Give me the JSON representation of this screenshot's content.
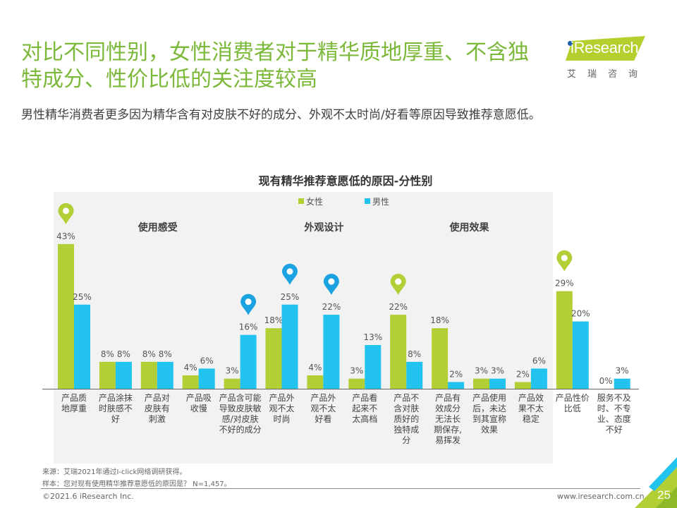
{
  "page": {
    "title": "对比不同性别，女性消费者对于精华质地厚重、不含独特成分、性价比低的关注度较高",
    "subtitle": "男性精华消费者更多因为精华含有对皮肤不好的成分、外观不太时尚/好看等原因导致推荐意愿低。",
    "logo": {
      "brand": "iResearch",
      "cn": "艾瑞咨询"
    },
    "source_note": "来源：艾瑞2021年通过I-click网络调研获得。",
    "sample_note": "样本：您对现有使用精华推荐意愿低的原因是？ N=1,457。",
    "copyright": "©2021.6 iResearch Inc.",
    "website": "www.iresearch.com.cn",
    "page_number": "25",
    "colors": {
      "female": "#b2cf35",
      "male": "#22c3ee",
      "title_green": "#7cb83a",
      "pin_blue": "#1aa3e0",
      "panel_bg": "#f2f2f2"
    }
  },
  "chart_data": {
    "type": "bar",
    "title": "现有精华推荐意愿低的原因-分性别",
    "xlabel": "",
    "ylabel": "",
    "ylim": [
      0,
      45
    ],
    "grid": false,
    "legend_position": "top-center",
    "unit": "%",
    "categories": [
      "产品质地厚重",
      "产品涂抹时肤感不好",
      "产品对皮肤有刺激",
      "产品吸收慢",
      "产品含可能导致皮肤敏感/对皮肤不好的成分",
      "产品外观不太时尚",
      "产品外观不太好看",
      "产品看起来不太高档",
      "产品不含对肤质好的独特成分",
      "产品有效成分无法长期保存，易挥发",
      "产品使用后，未达到其宣称效果",
      "产品效果不太稳定",
      "产品性价比低",
      "服务不及时、不专业、态度不好"
    ],
    "category_lines": [
      [
        "产品质",
        "地厚重"
      ],
      [
        "产品涂抹",
        "时肤感不",
        "好"
      ],
      [
        "产品对",
        "皮肤有",
        "刺激"
      ],
      [
        "产品吸",
        "收慢"
      ],
      [
        "产品含可能",
        "导致皮肤敏",
        "感/对皮肤",
        "不好的成分"
      ],
      [
        "产品外",
        "观不太",
        "时尚"
      ],
      [
        "产品外",
        "观不太",
        "好看"
      ],
      [
        "产品看",
        "起来不",
        "太高档"
      ],
      [
        "产品不",
        "含对肤",
        "质好的",
        "独特成",
        "分"
      ],
      [
        "产品有",
        "效成分",
        "无法长",
        "期保存,",
        "易挥发"
      ],
      [
        "产品使用",
        "后，未达",
        "到其宣称",
        "效果"
      ],
      [
        "产品效",
        "果不太",
        "稳定"
      ],
      [
        "产品性价",
        "比低"
      ],
      [
        "服务不及",
        "时、不专",
        "业、态度",
        "不好"
      ]
    ],
    "series": [
      {
        "name": "女性",
        "values": [
          43,
          8,
          8,
          4,
          3,
          18,
          4,
          3,
          22,
          18,
          3,
          2,
          29,
          0
        ]
      },
      {
        "name": "男性",
        "values": [
          25,
          8,
          8,
          6,
          16,
          25,
          22,
          13,
          8,
          2,
          3,
          6,
          20,
          3
        ]
      }
    ],
    "groups": [
      {
        "label": "使用感受",
        "from": 0,
        "to": 4
      },
      {
        "label": "外观设计",
        "from": 5,
        "to": 7
      },
      {
        "label": "使用效果",
        "from": 8,
        "to": 11
      }
    ],
    "highlights": [
      {
        "category_index": 0,
        "series": "女性"
      },
      {
        "category_index": 4,
        "series": "男性"
      },
      {
        "category_index": 5,
        "series": "男性"
      },
      {
        "category_index": 6,
        "series": "男性"
      },
      {
        "category_index": 8,
        "series": "女性"
      },
      {
        "category_index": 12,
        "series": "女性"
      }
    ]
  }
}
